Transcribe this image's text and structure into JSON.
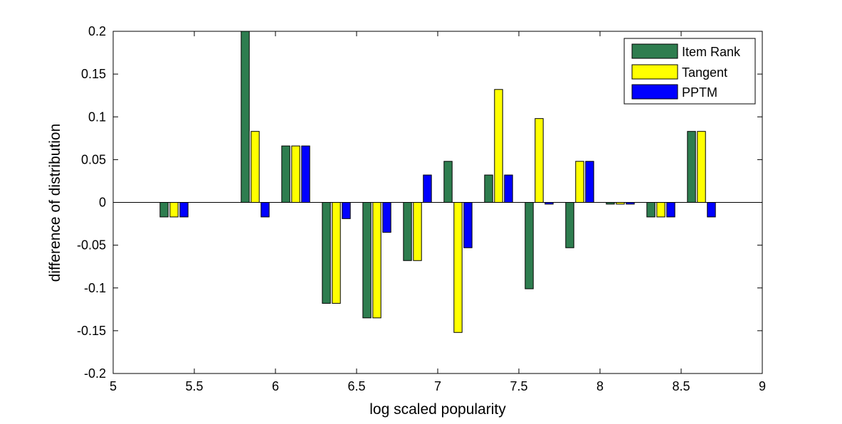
{
  "chart_data": {
    "type": "bar",
    "xlabel": "log scaled popularity",
    "ylabel": "difference of distribution",
    "xlim": [
      5,
      9
    ],
    "ylim": [
      -0.2,
      0.2
    ],
    "x_ticks": [
      5,
      5.5,
      6,
      6.5,
      7,
      7.5,
      8,
      8.5,
      9
    ],
    "x_tick_labels": [
      "5",
      "5.5",
      "6",
      "6.5",
      "7",
      "7.5",
      "8",
      "8.5",
      "9"
    ],
    "y_ticks": [
      -0.2,
      -0.15,
      -0.1,
      -0.05,
      0,
      0.05,
      0.1,
      0.15,
      0.2
    ],
    "y_tick_labels": [
      "-0.2",
      "-0.15",
      "-0.1",
      "-0.05",
      "0",
      "0.05",
      "0.1",
      "0.15",
      "0.2"
    ],
    "x": [
      5.375,
      5.875,
      6.125,
      6.375,
      6.625,
      6.875,
      7.125,
      7.375,
      7.625,
      7.875,
      8.125,
      8.375,
      8.625
    ],
    "legend_position": "top-right",
    "grid": false,
    "series": [
      {
        "name": "Item Rank",
        "color": "#2e7d4f",
        "values": [
          -0.017,
          0.2,
          0.066,
          -0.118,
          -0.135,
          -0.068,
          0.048,
          0.032,
          -0.101,
          -0.053,
          -0.002,
          -0.017,
          0.083
        ]
      },
      {
        "name": "Tangent",
        "color": "#ffff00",
        "values": [
          -0.017,
          0.083,
          0.066,
          -0.118,
          -0.135,
          -0.068,
          -0.152,
          0.132,
          0.098,
          0.048,
          -0.002,
          -0.017,
          0.083
        ]
      },
      {
        "name": "PPTM",
        "color": "#0000ff",
        "values": [
          -0.017,
          -0.017,
          0.066,
          -0.019,
          -0.035,
          0.032,
          -0.053,
          0.032,
          -0.002,
          0.048,
          -0.002,
          -0.017,
          -0.017
        ]
      }
    ]
  }
}
